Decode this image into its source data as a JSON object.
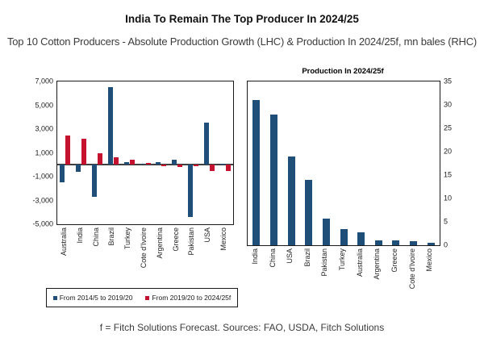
{
  "title": "India To Remain The Top Producer In 2024/25",
  "subtitle": "Top 10 Cotton Producers - Absolute Production Growth (LHC) & Production In 2024/25f, mn bales (RHC)",
  "footer": "f = Fitch Solutions Forecast. Sources: FAO, USDA, Fitch Solutions",
  "colors": {
    "series_blue": "#1F4E79",
    "series_red": "#C4122F",
    "axis": "#1a1a1a",
    "zero_line": "#404040"
  },
  "chart_data": [
    {
      "type": "bar",
      "position": "LHC",
      "title": "",
      "categories": [
        "Australia",
        "India",
        "China",
        "Brazil",
        "Turkey",
        "Cote d'Ivoire",
        "Argentina",
        "Greece",
        "Pakistan",
        "USA",
        "Mexico"
      ],
      "series": [
        {
          "name": "From 2014/5 to 2019/20",
          "color": "#1F4E79",
          "values": [
            -1500,
            -600,
            -2700,
            6500,
            250,
            50,
            250,
            400,
            -4400,
            3550,
            100
          ]
        },
        {
          "name": "From 2019/20 to 2024/25f",
          "color": "#C4122F",
          "values": [
            2450,
            2200,
            1000,
            650,
            450,
            150,
            -50,
            -200,
            -150,
            -500,
            -550
          ]
        }
      ],
      "ylim": [
        -5000,
        7000
      ],
      "yticks": [
        {
          "value": 7000,
          "label": "7,000"
        },
        {
          "value": 5000,
          "label": "5,000"
        },
        {
          "value": 3000,
          "label": "3,000"
        },
        {
          "value": 1000,
          "label": "1,000"
        },
        {
          "value": -1000,
          "label": "-1,000"
        },
        {
          "value": -3000,
          "label": "-3,000"
        },
        {
          "value": -5000,
          "label": "-5,000"
        }
      ],
      "grid": false,
      "legend_position": "bottom"
    },
    {
      "type": "bar",
      "position": "RHC",
      "title": "Production In 2024/25f",
      "categories": [
        "India",
        "China",
        "USA",
        "Brazil",
        "Pakistan",
        "Turkey",
        "Australia",
        "Argentina",
        "Greece",
        "Cote d'Ivoire",
        "Mexico"
      ],
      "series": [
        {
          "name": "Production In 2024/25f",
          "color": "#1F4E79",
          "values": [
            31,
            28,
            19,
            14,
            5.7,
            3.5,
            2.8,
            1.1,
            1.1,
            0.9,
            0.6
          ]
        }
      ],
      "ylim": [
        0,
        35
      ],
      "yticks": [
        {
          "value": 35,
          "label": "35"
        },
        {
          "value": 30,
          "label": "30"
        },
        {
          "value": 25,
          "label": "25"
        },
        {
          "value": 20,
          "label": "20"
        },
        {
          "value": 15,
          "label": "15"
        },
        {
          "value": 10,
          "label": "10"
        },
        {
          "value": 5,
          "label": "5"
        },
        {
          "value": 0,
          "label": "0"
        }
      ],
      "grid": false,
      "yaxis_side": "right",
      "legend_position": "none"
    }
  ]
}
